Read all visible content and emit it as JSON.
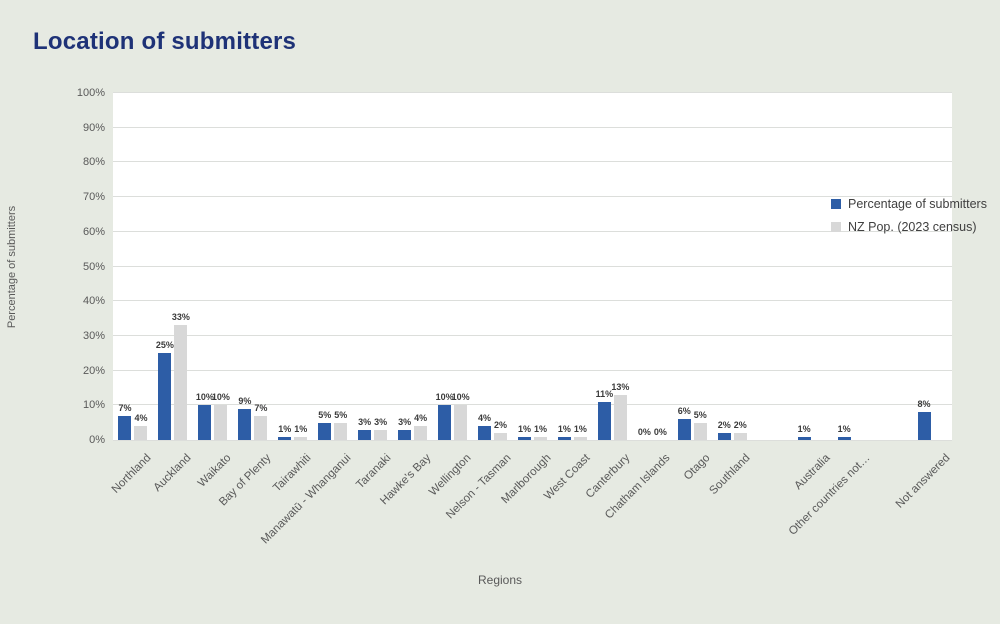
{
  "page": {
    "title": "Location of submitters"
  },
  "colors": {
    "background": "#e6eae2",
    "title_text": "#1e3277",
    "series_blue": "#2d5da6",
    "series_gray": "#d8d8d8",
    "axis_text": "#595959",
    "data_label_text": "#3b3b3b",
    "gridline": "#dcdedb",
    "plot_background": "#ffffff"
  },
  "chart_data": {
    "type": "bar",
    "title": "Location of submitters",
    "xlabel": "Regions",
    "ylabel": "Percentage of submitters",
    "ylim": [
      0,
      100
    ],
    "ytick_step": 10,
    "ytick_suffix": "%",
    "grid": true,
    "legend_position": "top-right-inside",
    "categories": [
      "Northland",
      "Auckland",
      "Waikato",
      "Bay of Plenty",
      "Tairawhiti",
      "Manawatū - Whanganui",
      "Taranaki",
      "Hawke's Bay",
      "Wellington",
      "Nelson - Tasman",
      "Marlborough",
      "West Coast",
      "Canterbury",
      "Chatham Islands",
      "Otago",
      "Southland",
      "",
      "Australia",
      "Other countries not…",
      "",
      "Not answered"
    ],
    "series": [
      {
        "name": "Percentage of submitters",
        "color": "#2d5da6",
        "values": [
          7,
          25,
          10,
          9,
          1,
          5,
          3,
          3,
          10,
          4,
          1,
          1,
          11,
          0,
          6,
          2,
          null,
          1,
          1,
          null,
          8
        ]
      },
      {
        "name": "NZ Pop. (2023 census)",
        "color": "#d8d8d8",
        "values": [
          4,
          33,
          10,
          7,
          1,
          5,
          3,
          4,
          10,
          2,
          1,
          1,
          13,
          0,
          5,
          2,
          null,
          null,
          null,
          null,
          null
        ]
      }
    ],
    "data_label_suffix": "%"
  }
}
